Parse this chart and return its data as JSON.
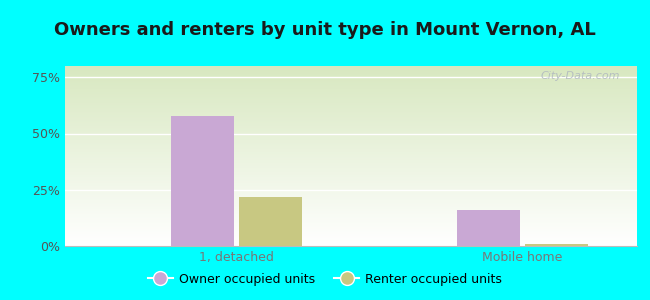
{
  "title": "Owners and renters by unit type in Mount Vernon, AL",
  "categories": [
    "1, detached",
    "Mobile home"
  ],
  "owner_values": [
    58,
    16
  ],
  "renter_values": [
    22,
    1
  ],
  "owner_color": "#c9a8d4",
  "renter_color": "#c8c882",
  "background_color": "#00ffff",
  "plot_bg_color_bottom_left": "#ffffff",
  "plot_bg_color_top_right": "#d8e8c0",
  "yticks": [
    0,
    25,
    50,
    75
  ],
  "ylim": [
    0,
    80
  ],
  "bar_width": 0.55,
  "legend_owner": "Owner occupied units",
  "legend_renter": "Renter occupied units",
  "title_fontsize": 13,
  "watermark": "City-Data.com",
  "grid_color": "#e8e8e8"
}
